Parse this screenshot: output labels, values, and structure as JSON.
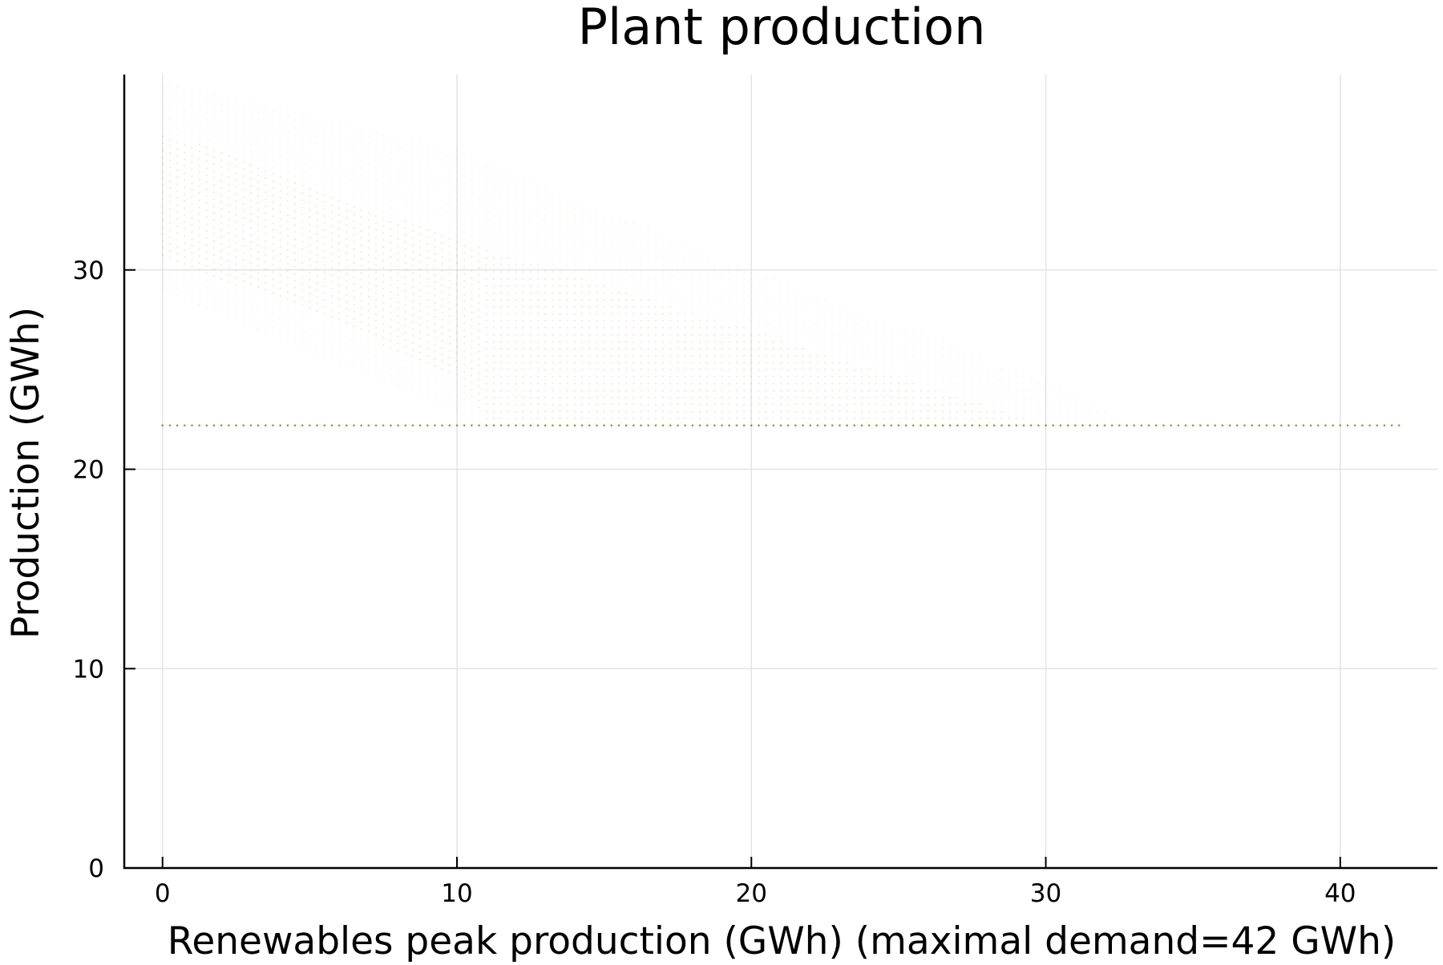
{
  "chart_data": {
    "type": "scatter",
    "title": "Plant production",
    "xlabel": "Renewables peak production (GWh) (maximal demand=42 GWh)",
    "ylabel": "Production (GWh)",
    "xlim": [
      -1.3,
      43.3
    ],
    "ylim": [
      0,
      39.8
    ],
    "xticks": [
      0,
      10,
      20,
      30,
      40
    ],
    "yticks": [
      0,
      10,
      20,
      30
    ],
    "x_tick_labels": [
      "0",
      "10",
      "20",
      "30",
      "40"
    ],
    "y_tick_labels": [
      "0",
      "10",
      "20",
      "30"
    ],
    "grid": true,
    "legend": "none",
    "marker_color": "#c8a030",
    "marker_opacity": "low",
    "series": [
      {
        "description_of_shape": "dense band of faint points",
        "upper_envelope": [
          [
            0,
            39.5
          ],
          [
            10,
            36.0
          ],
          [
            20,
            30.0
          ],
          [
            30,
            24.5
          ],
          [
            33,
            22.2
          ]
        ],
        "core_upper": [
          [
            0,
            37.0
          ],
          [
            10,
            31.5
          ],
          [
            20,
            27.0
          ],
          [
            30,
            22.2
          ]
        ],
        "core_lower": [
          [
            0,
            30.5
          ],
          [
            5,
            28.0
          ],
          [
            10,
            24.5
          ],
          [
            11,
            22.2
          ]
        ],
        "lower_envelope": [
          [
            0,
            29.0
          ],
          [
            10,
            23.0
          ],
          [
            11,
            22.2
          ]
        ],
        "floor_y": 22.2,
        "floor_x_range": [
          10,
          42
        ],
        "x_step": 0.25
      }
    ]
  }
}
